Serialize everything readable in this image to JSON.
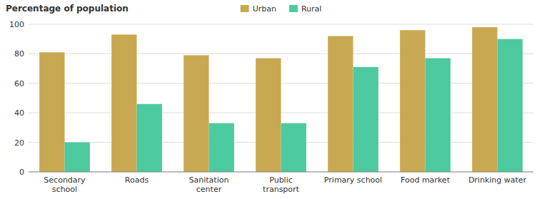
{
  "chart_data": {
    "type": "bar",
    "ylabel": "Percentage of population",
    "categories": [
      "Secondary\nschool",
      "Roads",
      "Sanitation\ncenter",
      "Public\ntransport",
      "Primary school",
      "Food market",
      "Drinking water"
    ],
    "series": [
      {
        "name": "Urban",
        "color": "#C8A951",
        "values": [
          81,
          93,
          79,
          77,
          92,
          96,
          98
        ]
      },
      {
        "name": "Rural",
        "color": "#4DC9A0",
        "values": [
          20,
          46,
          33,
          33,
          71,
          77,
          90
        ]
      }
    ],
    "ylim": [
      0,
      100
    ],
    "yticks": [
      0,
      20,
      40,
      60,
      80,
      100
    ],
    "grid": true,
    "legend": "top"
  }
}
